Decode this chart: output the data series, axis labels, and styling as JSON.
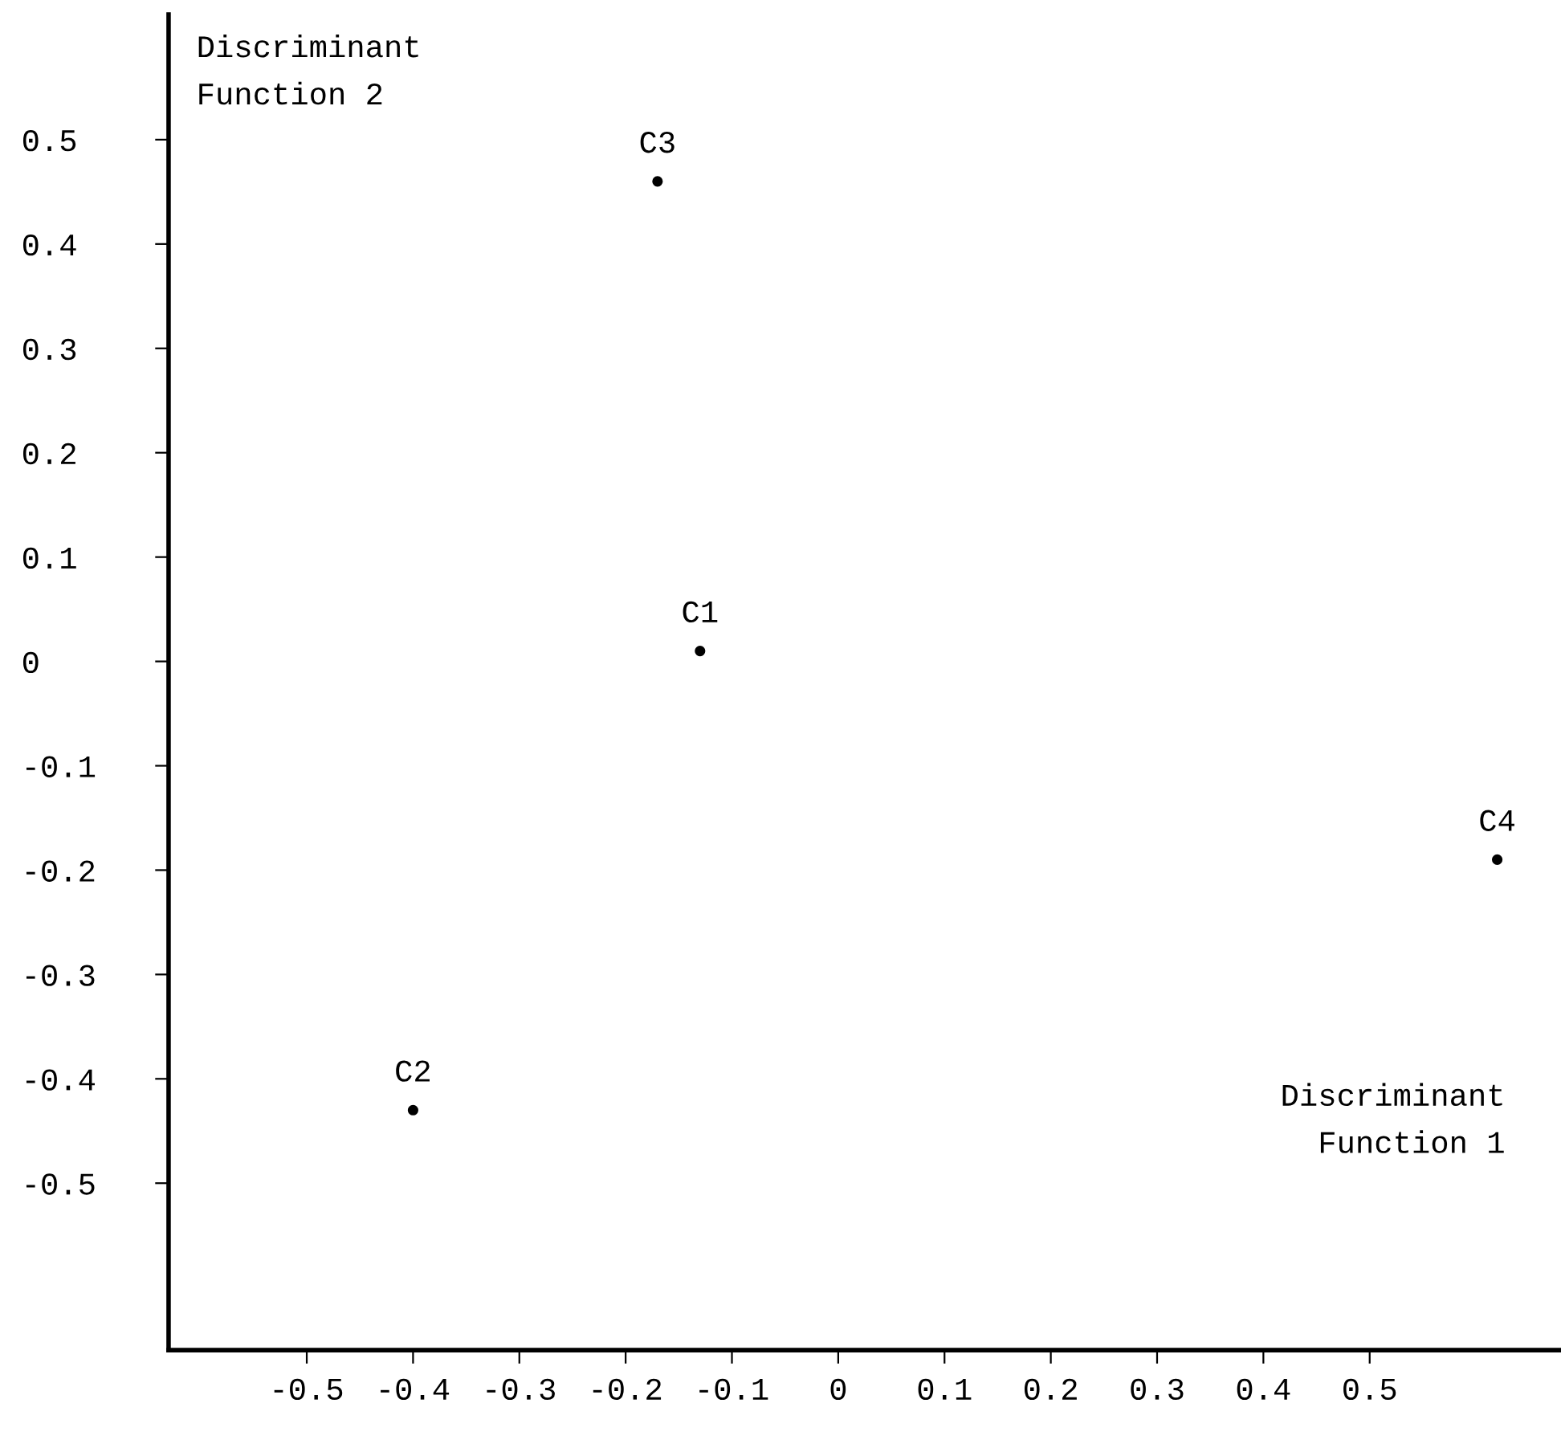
{
  "chart_data": {
    "type": "scatter",
    "xlabel": "Discriminant\nFunction 1",
    "ylabel": "Discriminant\nFunction 2",
    "x": [
      -0.13,
      -0.4,
      -0.17,
      0.62
    ],
    "series": [
      {
        "color": "#000000",
        "values": [
          0.01,
          -0.43,
          0.46,
          -0.19
        ]
      }
    ],
    "annotations": [
      {
        "text": "C1",
        "x": -0.13,
        "y": 0.01
      },
      {
        "text": "C2",
        "x": -0.4,
        "y": -0.43
      },
      {
        "text": "C3",
        "x": -0.17,
        "y": 0.46
      },
      {
        "text": "C4",
        "x": 0.62,
        "y": -0.19
      }
    ],
    "xlim": [
      -0.63,
      0.68
    ],
    "ylim": [
      -0.66,
      0.62
    ],
    "xticks": [
      -0.5,
      -0.4,
      -0.3,
      -0.2,
      -0.1,
      0,
      0.1,
      0.2,
      0.3,
      0.4,
      0.5
    ],
    "yticks": [
      -0.5,
      -0.4,
      -0.3,
      -0.2,
      -0.1,
      0,
      0.1,
      0.2,
      0.3,
      0.4,
      0.5
    ],
    "grid": false,
    "legend": false,
    "marker": "circle"
  }
}
